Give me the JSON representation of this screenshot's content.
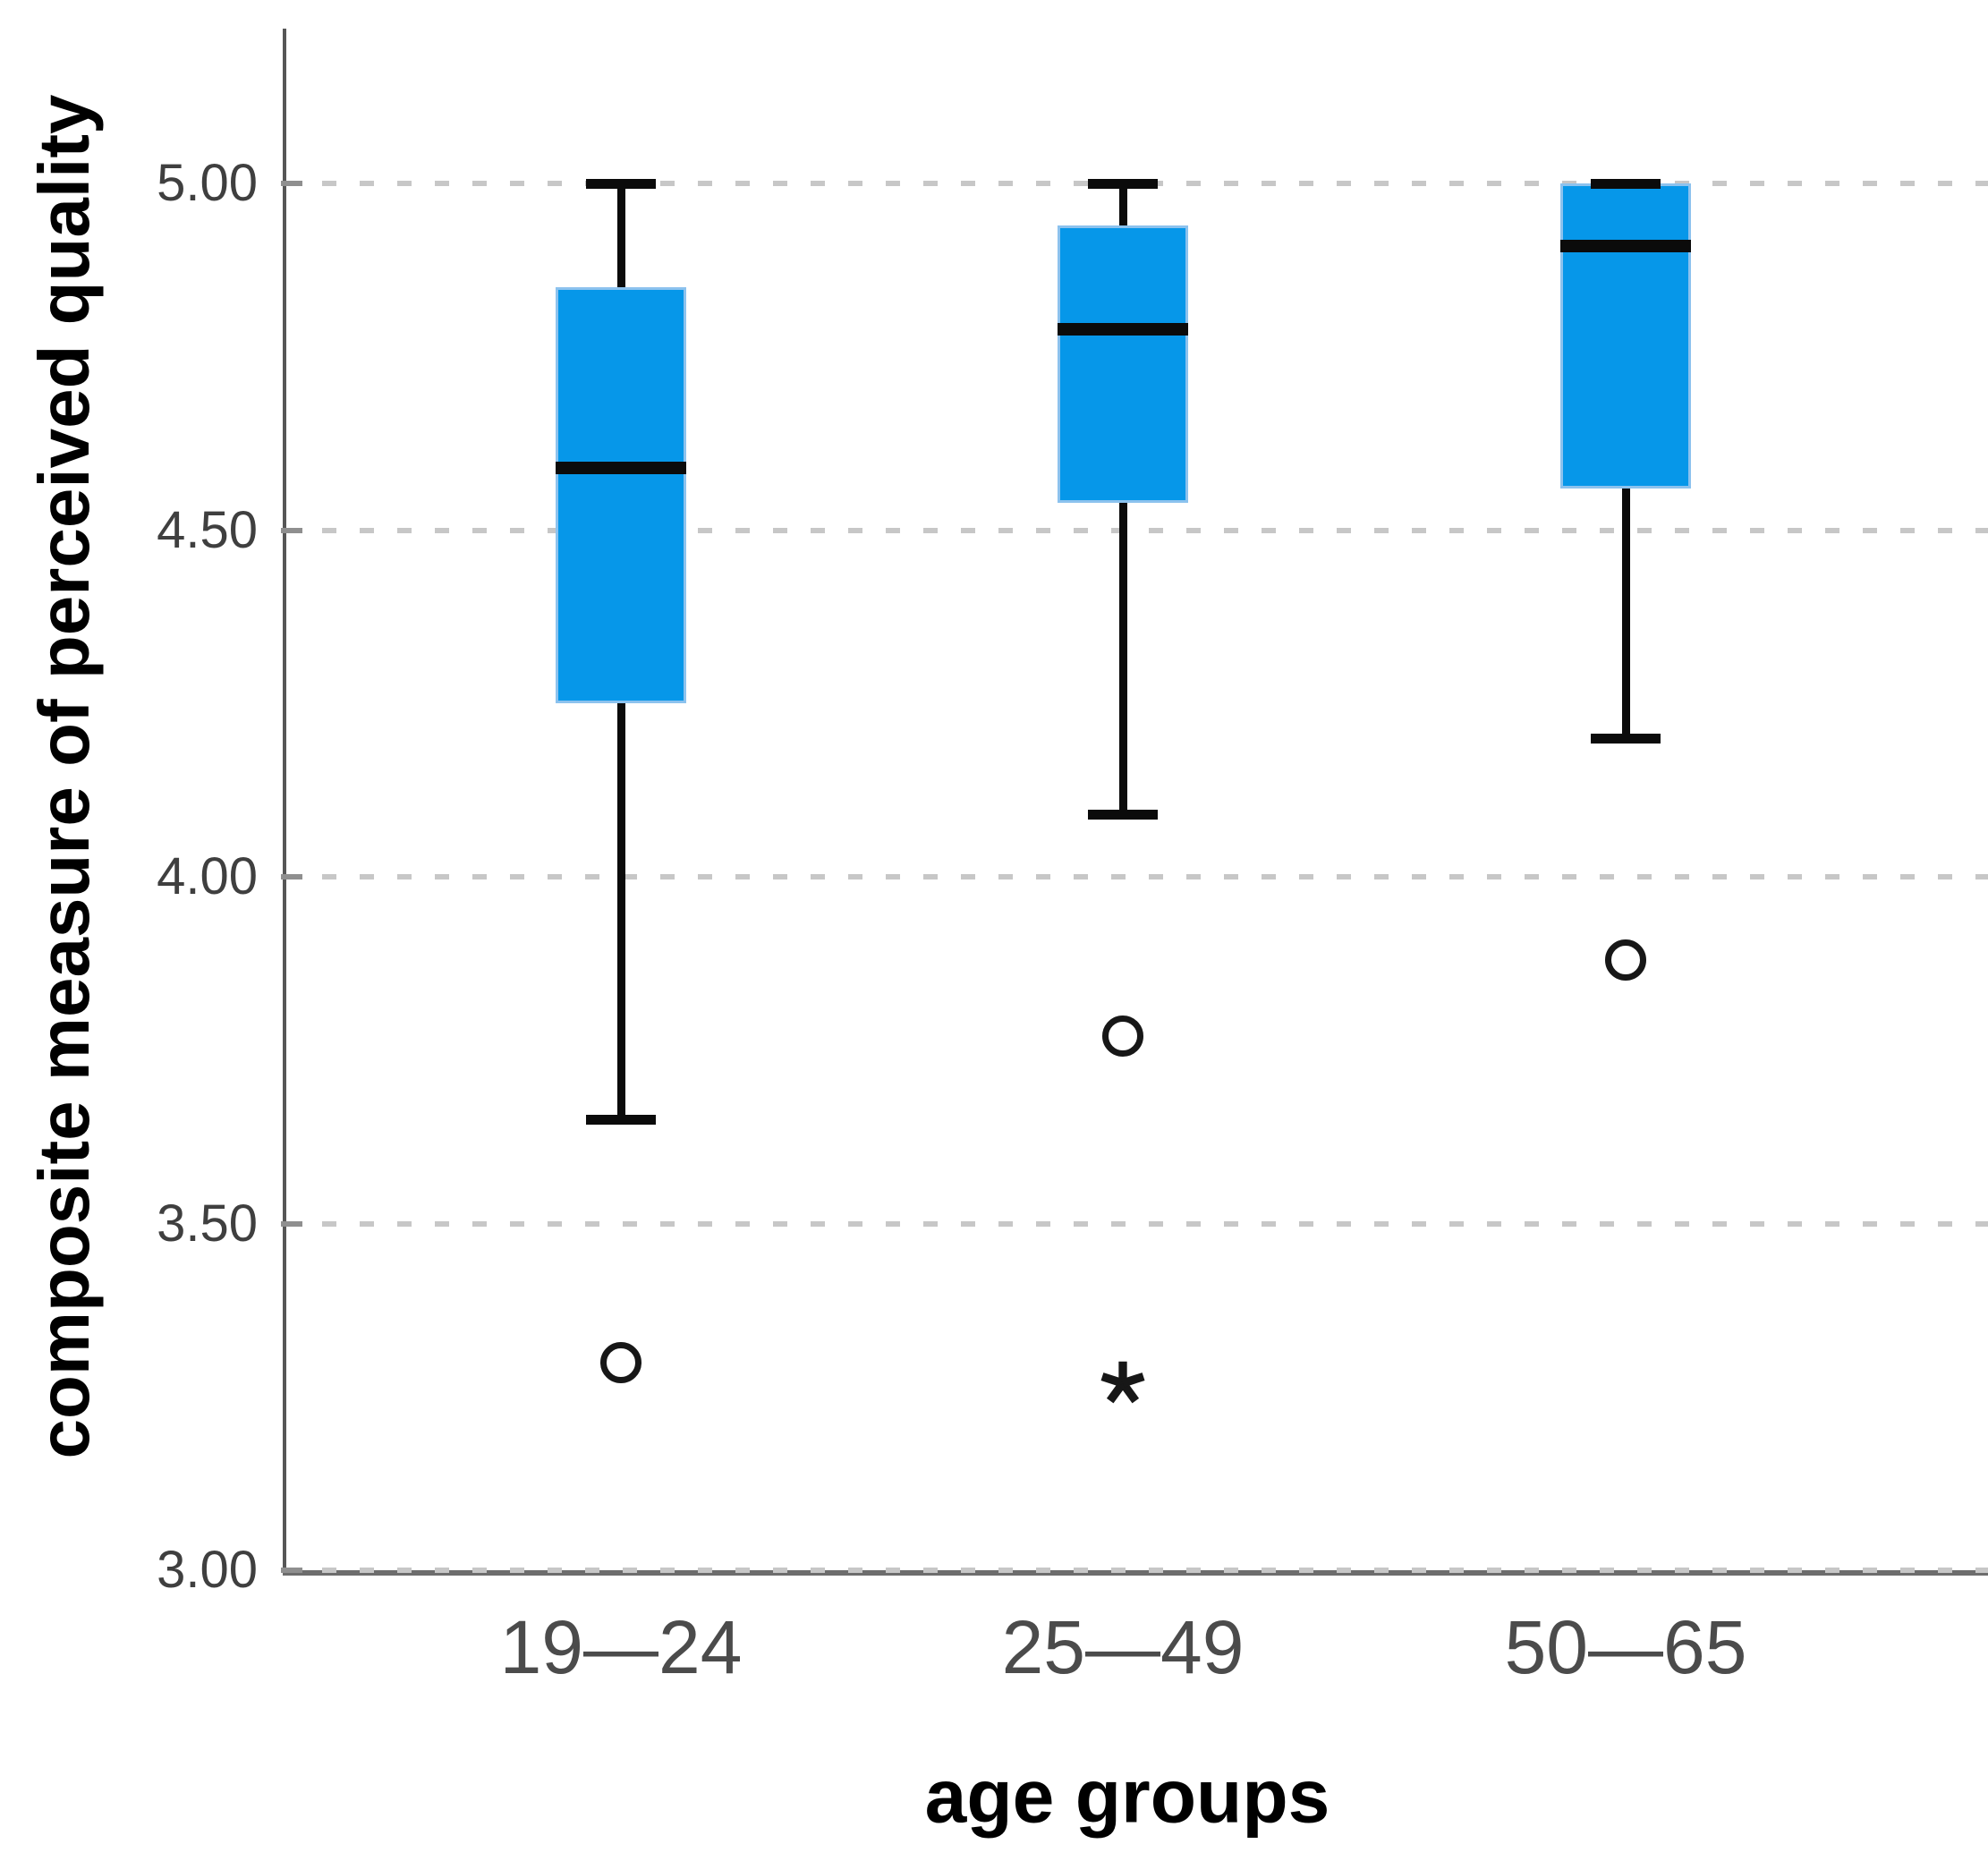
{
  "chart_data": {
    "type": "boxplot",
    "title": "",
    "xlabel": "age groups",
    "ylabel": "composite measure of perceived quality",
    "y_axis": {
      "min": 3.0,
      "max": 5.0,
      "tick_step": 0.5,
      "ticks": [
        {
          "value": 5.0,
          "label": "5.00"
        },
        {
          "value": 4.5,
          "label": "4.50"
        },
        {
          "value": 4.0,
          "label": "4.00"
        },
        {
          "value": 3.5,
          "label": "3.50"
        },
        {
          "value": 3.0,
          "label": "3.00"
        }
      ],
      "gridlines": "dashed-horizontal"
    },
    "x_axis": {
      "categories": [
        "19—24",
        "25—49",
        "50—65"
      ]
    },
    "legend": "none",
    "groups": [
      {
        "label": "19—24",
        "whisker_low": 3.65,
        "q1": 4.25,
        "median": 4.59,
        "q3": 4.85,
        "whisker_high": 5.0,
        "outliers": [
          {
            "value": 3.3,
            "marker": "circle"
          }
        ]
      },
      {
        "label": "25—49",
        "whisker_low": 4.09,
        "q1": 4.54,
        "median": 4.79,
        "q3": 4.94,
        "whisker_high": 5.0,
        "outliers": [
          {
            "value": 3.77,
            "marker": "circle"
          },
          {
            "value": 3.27,
            "marker": "star"
          }
        ]
      },
      {
        "label": "50—65",
        "whisker_low": 4.2,
        "q1": 4.56,
        "median": 4.91,
        "q3": 5.0,
        "whisker_high": 5.0,
        "outliers": [
          {
            "value": 3.88,
            "marker": "circle"
          }
        ]
      }
    ],
    "colors": {
      "box_fill": "#0697e9",
      "box_border": "#8cc2ee",
      "whisker_line": "#0b0b0b",
      "median_line": "#0b0b0b",
      "outlier_stroke": "#171717",
      "gridline": "#c7c7c7",
      "axis_line": "#565656",
      "tick_label": "#3f3f3f"
    }
  }
}
